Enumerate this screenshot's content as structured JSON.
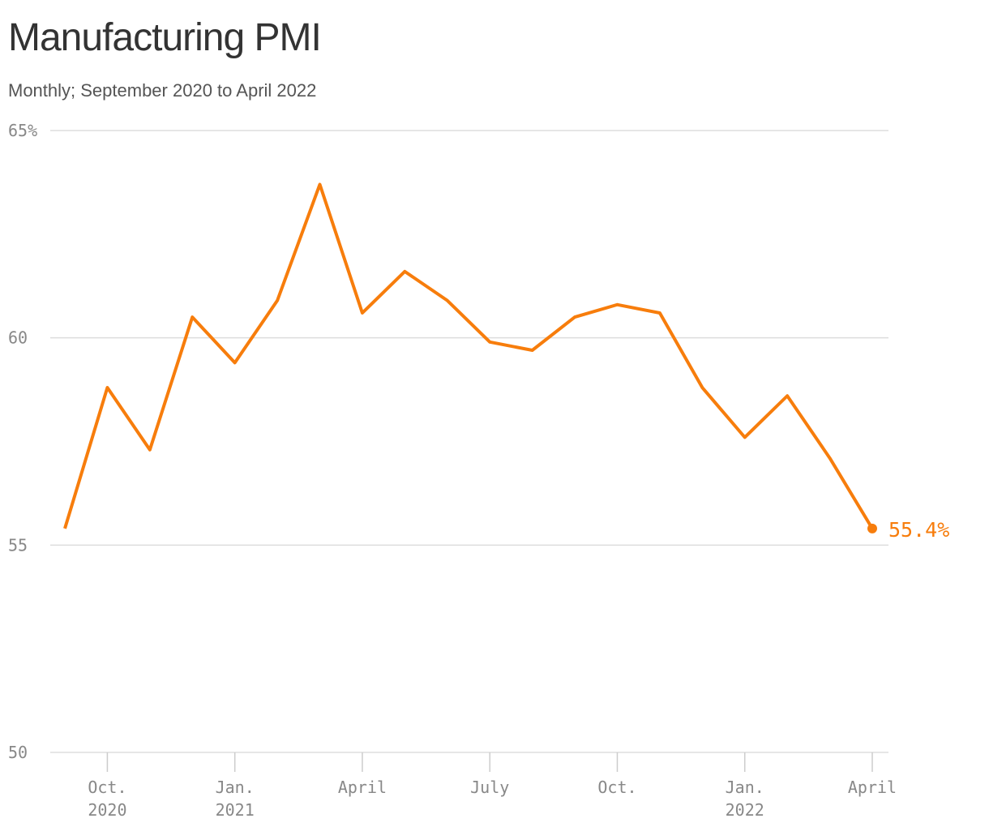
{
  "chart_data": {
    "type": "line",
    "title": "Manufacturing PMI",
    "subtitle": "Monthly; September 2020 to April 2022",
    "categories": [
      null,
      "Oct. 2020",
      null,
      null,
      "Jan. 2021",
      null,
      null,
      "April",
      null,
      null,
      "July",
      null,
      null,
      "Oct.",
      null,
      null,
      "Jan. 2022",
      null,
      null,
      "April"
    ],
    "series": [
      {
        "name": "Manufacturing PMI",
        "color": "#f77d0c",
        "values": [
          55.4,
          58.8,
          57.3,
          60.5,
          59.4,
          60.9,
          63.7,
          60.6,
          61.6,
          60.9,
          59.9,
          59.7,
          60.5,
          60.8,
          60.6,
          58.8,
          57.6,
          58.6,
          57.1,
          55.4
        ],
        "value_labels": [
          null,
          null,
          null,
          null,
          null,
          null,
          null,
          null,
          null,
          null,
          null,
          null,
          null,
          null,
          null,
          null,
          null,
          null,
          null,
          "55.4%"
        ]
      }
    ],
    "ylim": [
      50,
      65
    ],
    "yticks": [
      50,
      55,
      60,
      {
        "value": 65,
        "label": "65%"
      }
    ],
    "grid": true
  }
}
